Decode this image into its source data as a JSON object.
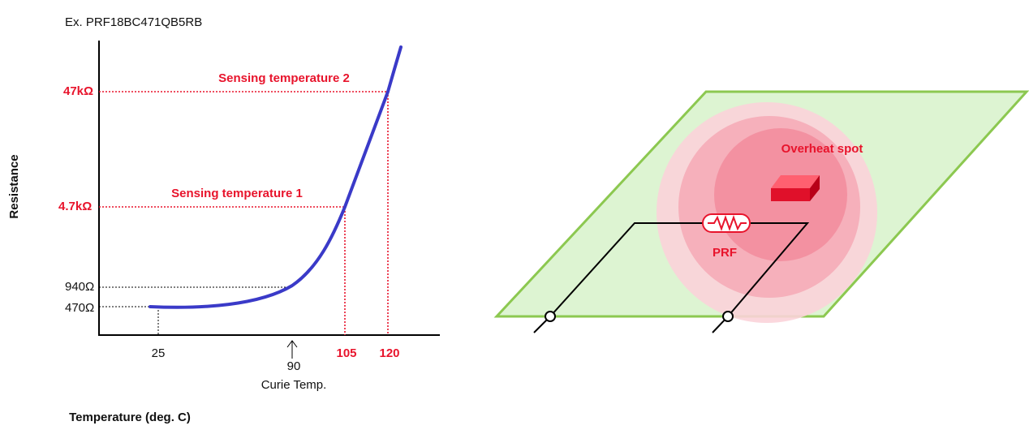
{
  "graph": {
    "example": "Ex. PRF18BC471QB5RB",
    "y_axis_title": "Resistance",
    "x_axis_title": "Temperature (deg. C)",
    "y_labels": [
      "47kΩ",
      "4.7kΩ",
      "940Ω",
      "470Ω"
    ],
    "x_labels": [
      "25",
      "90",
      "105",
      "120"
    ],
    "x_note": "Curie Temp.",
    "annotations": [
      "Sensing temperature 2",
      "Sensing temperature 1"
    ]
  },
  "illustration": {
    "spot_label": "Overheat spot",
    "component_label": "PRF"
  }
}
